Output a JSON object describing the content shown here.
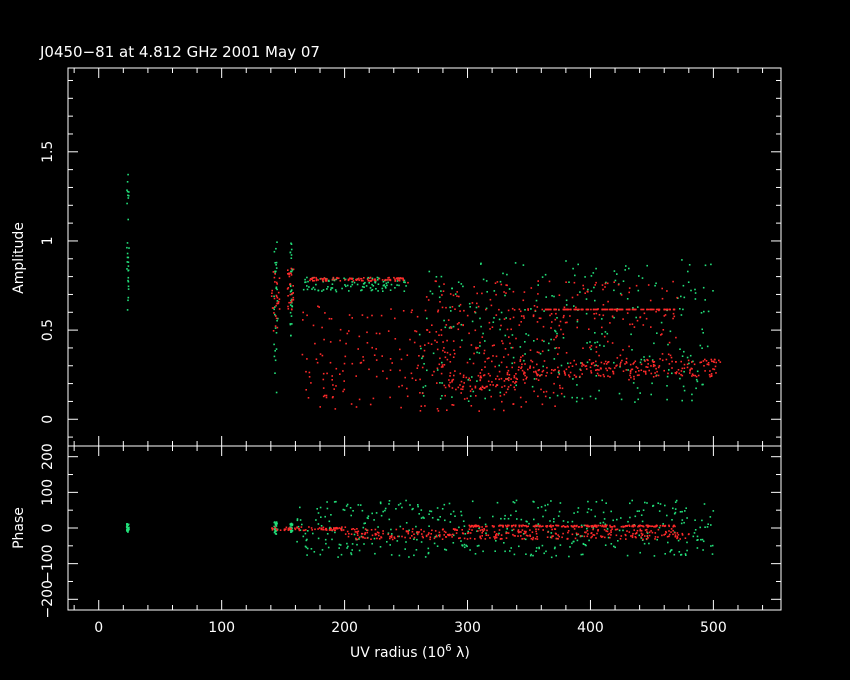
{
  "chart_data": [
    {
      "type": "scatter",
      "title": "J0450−81 at 4.812 GHz 2001 May 07",
      "xlabel": "UV radius  (10",
      "xlabel_exp": "6",
      "xlabel_unit": " λ)",
      "ylabel": "Amplitude",
      "xlim": [
        -25,
        555
      ],
      "ylim": [
        -0.15,
        1.97
      ],
      "xticks": [
        "0",
        "100",
        "200",
        "300",
        "400",
        "500"
      ],
      "yticks": [
        "0",
        "0.5",
        "1",
        "1.5"
      ],
      "grid": false,
      "series_colors": {
        "green": "#22e07a",
        "red": "#ff2a2a"
      },
      "series": [
        {
          "color": "green",
          "segments": [
            {
              "x": [
                22,
                24
              ],
              "y": [
                0.6,
                1.38
              ]
            },
            {
              "x": [
                142,
                145
              ],
              "y": [
                0.15,
                1.0
              ]
            },
            {
              "x": [
                155,
                157
              ],
              "y": [
                0.47,
                1.0
              ]
            },
            {
              "x": [
                165,
                250
              ],
              "y": [
                0.72,
                0.8
              ]
            },
            {
              "x": [
                260,
                500
              ],
              "y": [
                0.1,
                0.9
              ]
            }
          ]
        },
        {
          "color": "red",
          "segments": [
            {
              "x": [
                140,
                147
              ],
              "y": [
                0.5,
                0.85
              ]
            },
            {
              "x": [
                153,
                158
              ],
              "y": [
                0.6,
                0.86
              ]
            },
            {
              "x": [
                170,
                250
              ],
              "y": [
                0.78,
                0.8
              ]
            },
            {
              "x": [
                250,
                470
              ],
              "y": [
                0.78,
                0.22
              ]
            },
            {
              "x": [
                165,
                380
              ],
              "y": [
                0.64,
                0.05
              ]
            },
            {
              "x": [
                280,
                340
              ],
              "y": [
                0.26,
                0.17
              ]
            },
            {
              "x": [
                340,
                505
              ],
              "y": [
                0.34,
                0.24
              ]
            },
            {
              "x": [
                360,
                470
              ],
              "y": [
                0.62,
                0.62
              ]
            }
          ]
        }
      ]
    },
    {
      "type": "scatter",
      "ylabel": "Phase",
      "xlim": [
        -25,
        555
      ],
      "ylim": [
        -230,
        230
      ],
      "yticks": [
        "−200",
        "−100",
        "0",
        "100",
        "200"
      ],
      "grid": false,
      "series": [
        {
          "color": "green",
          "segments": [
            {
              "x": [
                22,
                24
              ],
              "y": [
                -10,
                15
              ]
            },
            {
              "x": [
                142,
                145
              ],
              "y": [
                -15,
                20
              ]
            },
            {
              "x": [
                155,
                157
              ],
              "y": [
                -10,
                15
              ]
            },
            {
              "x": [
                160,
                500
              ],
              "y": [
                -80,
                80
              ]
            }
          ]
        },
        {
          "color": "red",
          "segments": [
            {
              "x": [
                140,
                200
              ],
              "y": [
                -5,
                5
              ]
            },
            {
              "x": [
                200,
                480
              ],
              "y": [
                0,
                -30
              ]
            },
            {
              "x": [
                300,
                470
              ],
              "y": [
                10,
                5
              ]
            }
          ]
        }
      ]
    }
  ]
}
